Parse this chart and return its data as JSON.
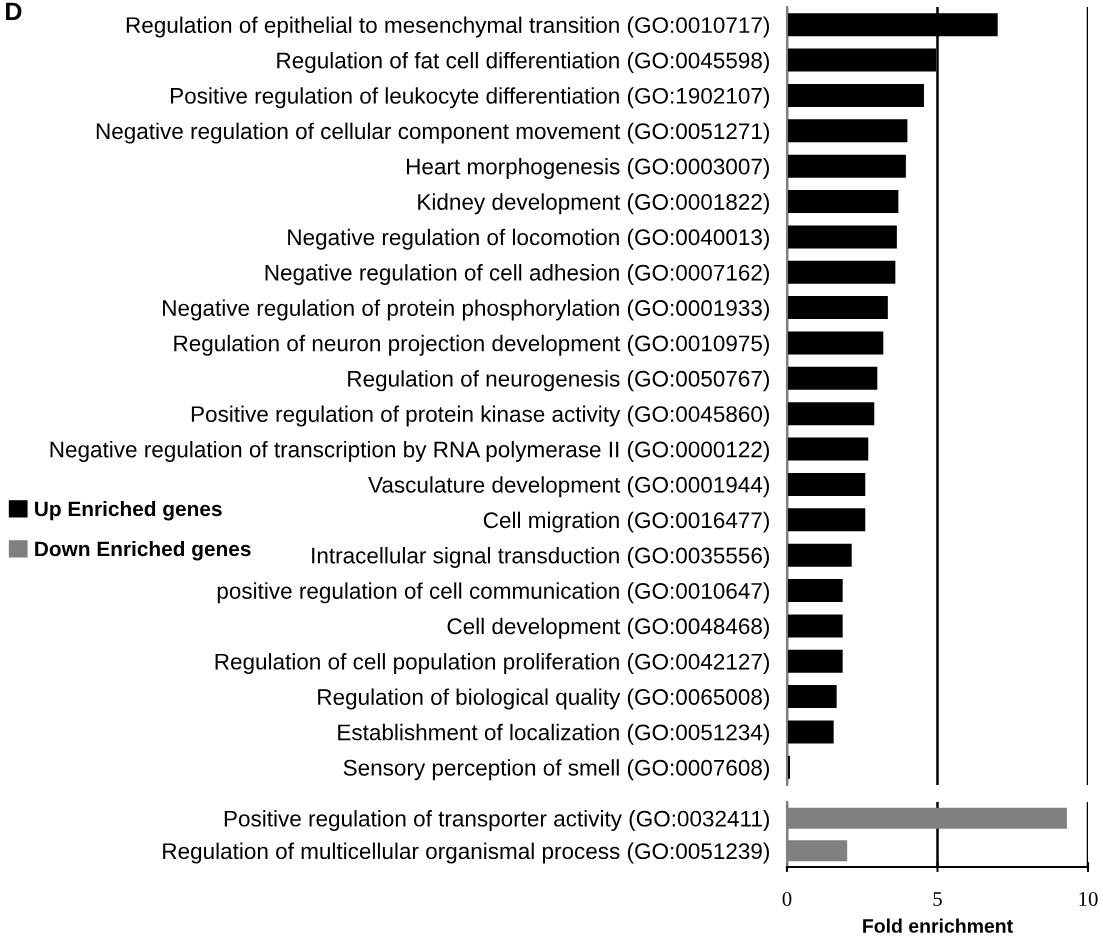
{
  "chart_data": [
    {
      "type": "bar",
      "orientation": "horizontal",
      "categories": [
        "Regulation of epithelial to mesenchymal transition (GO:0010717)",
        "Regulation of fat cell differentiation (GO:0045598)",
        "Positive regulation of leukocyte differentiation (GO:1902107)",
        "Negative regulation of cellular component movement (GO:0051271)",
        "Heart morphogenesis (GO:0003007)",
        "Kidney development (GO:0001822)",
        "Negative regulation of locomotion (GO:0040013)",
        "Negative regulation of cell adhesion (GO:0007162)",
        "Negative regulation of protein phosphorylation (GO:0001933)",
        "Regulation of neuron projection development (GO:0010975)",
        "Regulation of neurogenesis (GO:0050767)",
        "Positive regulation of protein kinase activity (GO:0045860)",
        "Negative regulation of transcription by RNA polymerase II (GO:0000122)",
        "Vasculature development (GO:0001944)",
        "Cell migration (GO:0016477)",
        "Intracellular signal transduction (GO:0035556)",
        "positive regulation of cell communication (GO:0010647)",
        "Cell development (GO:0048468)",
        "Regulation of cell population proliferation (GO:0042127)",
        "Regulation of biological quality (GO:0065008)",
        "Establishment of localization (GO:0051234)",
        "Sensory perception of smell (GO:0007608)"
      ],
      "series": [
        {
          "name": "Up Enriched genes",
          "color": "#000000",
          "values": [
            7.0,
            4.95,
            4.55,
            4.0,
            3.95,
            3.7,
            3.65,
            3.6,
            3.35,
            3.2,
            3.0,
            2.9,
            2.7,
            2.6,
            2.6,
            2.15,
            1.85,
            1.85,
            1.85,
            1.65,
            1.55,
            0.1
          ]
        }
      ],
      "xlim": [
        0,
        10
      ],
      "xticks": [
        0,
        5,
        10
      ],
      "grid": "x",
      "tick_labels": "y",
      "legend": "left",
      "annotations": [
        "D"
      ]
    },
    {
      "type": "bar",
      "orientation": "horizontal",
      "categories": [
        "Positive regulation of transporter activity (GO:0032411)",
        "Regulation of multicellular organismal process (GO:0051239)"
      ],
      "series": [
        {
          "name": "Down Enriched genes",
          "color": "#808080",
          "values": [
            9.3,
            2.0
          ]
        }
      ],
      "xlim": [
        0,
        10
      ],
      "xticks": [
        0,
        5,
        10
      ],
      "xlabel": "Fold enrichment",
      "grid": "x",
      "legend": "left"
    }
  ]
}
